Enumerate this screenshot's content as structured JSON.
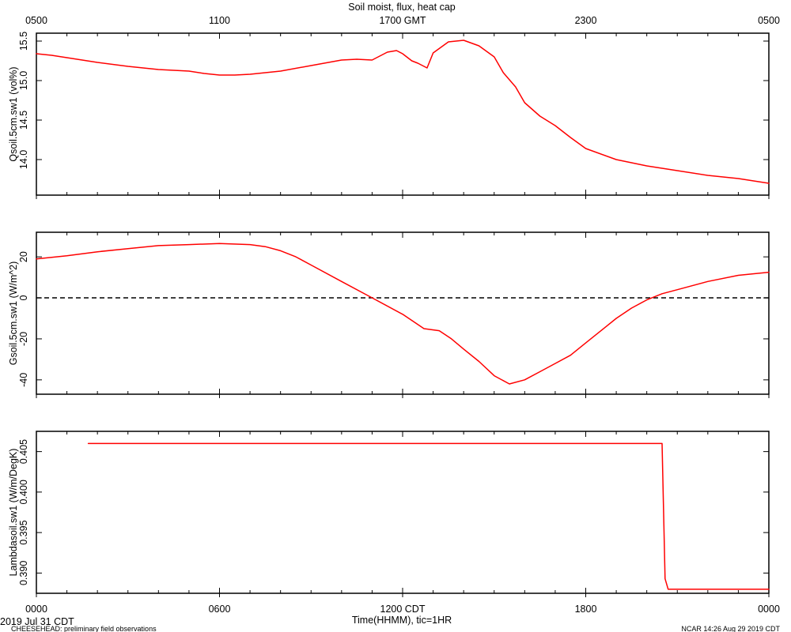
{
  "header": {
    "title": "Soil moist, flux, heat cap",
    "top_axis_ticks": [
      "0500",
      "1100",
      "1700 GMT",
      "2300",
      "0500"
    ]
  },
  "footer": {
    "date_label": "2019 Jul 31 CDT",
    "project_label": "CHEESEHEAD: preliminary field observations",
    "credit_label": "NCAR 14:26 Aug 29 2019 CDT",
    "xlabel": "Time(HHMM), tic=1HR",
    "bottom_axis_ticks": [
      "0000",
      "0600",
      "1200 CDT",
      "1800",
      "0000"
    ]
  },
  "colors": {
    "series": "#ff0000",
    "axes": "#000000",
    "zero_line": "#000000"
  },
  "chart_data": [
    {
      "type": "line",
      "title": "Soil moist, flux, heat cap",
      "xlabel": "",
      "ylabel": "Qsoil.5cm.sw1 (vol%)",
      "xlim": [
        0,
        24
      ],
      "ylim": [
        13.55,
        15.6
      ],
      "yticks": [
        14.0,
        14.5,
        15.0,
        15.5
      ],
      "ytick_labels": [
        "14.0",
        "14.5",
        "15.0",
        "15.5"
      ],
      "grid": false,
      "legend": "none",
      "x": [
        0,
        0.5,
        1,
        1.5,
        2,
        3,
        4,
        5,
        5.5,
        6,
        6.5,
        7,
        8,
        9,
        10,
        10.5,
        11,
        11.5,
        11.8,
        12,
        12.3,
        12.5,
        12.8,
        13,
        13.5,
        14,
        14.5,
        15,
        15.3,
        15.7,
        16,
        16.5,
        17,
        17.5,
        18,
        19,
        20,
        21,
        22,
        23,
        24
      ],
      "values": [
        15.34,
        15.32,
        15.29,
        15.26,
        15.23,
        15.18,
        15.14,
        15.12,
        15.09,
        15.07,
        15.07,
        15.08,
        15.12,
        15.19,
        15.26,
        15.27,
        15.26,
        15.36,
        15.38,
        15.34,
        15.25,
        15.22,
        15.16,
        15.35,
        15.49,
        15.51,
        15.44,
        15.3,
        15.1,
        14.92,
        14.72,
        14.55,
        14.43,
        14.28,
        14.14,
        14.0,
        13.92,
        13.86,
        13.8,
        13.76,
        13.7
      ]
    },
    {
      "type": "line",
      "xlabel": "",
      "ylabel": "Gsoil.5cm.sw1 (W/m^2)",
      "xlim": [
        0,
        24
      ],
      "ylim": [
        -47,
        32
      ],
      "yticks": [
        -40,
        -20,
        0,
        20
      ],
      "ytick_labels": [
        "-40",
        "-20",
        "0",
        "20"
      ],
      "reference_line": {
        "y": 0,
        "style": "dashed"
      },
      "grid": false,
      "legend": "none",
      "x": [
        0,
        1,
        2,
        3,
        4,
        5,
        6,
        7,
        7.5,
        8,
        8.5,
        9,
        10,
        11,
        12,
        12.7,
        13.2,
        13.6,
        14,
        14.5,
        15,
        15.5,
        16,
        16.5,
        17,
        17.5,
        18,
        18.5,
        19,
        19.5,
        20,
        20.5,
        21,
        22,
        23,
        24
      ],
      "values": [
        19,
        20.5,
        22.5,
        24,
        25.5,
        26,
        26.5,
        26,
        25,
        23,
        20,
        16,
        8,
        0,
        -8,
        -15,
        -16,
        -20,
        -25,
        -31,
        -38,
        -42,
        -40,
        -36,
        -32,
        -28,
        -22,
        -16,
        -10,
        -5,
        -1,
        2,
        4,
        8,
        11,
        12.5
      ]
    },
    {
      "type": "line",
      "xlabel": "Time(HHMM), tic=1HR",
      "ylabel": "Lambdasoil.sw1 (W/m/DegK)",
      "xlim": [
        0,
        24
      ],
      "ylim": [
        0.3875,
        0.4075
      ],
      "yticks": [
        0.39,
        0.395,
        0.4,
        0.405
      ],
      "ytick_labels": [
        "0.390",
        "0.395",
        "0.400",
        "0.405"
      ],
      "grid": false,
      "legend": "none",
      "x": [
        1.7,
        20.5,
        20.6,
        20.7,
        24
      ],
      "values": [
        0.406,
        0.406,
        0.3893,
        0.388,
        0.388
      ]
    }
  ]
}
